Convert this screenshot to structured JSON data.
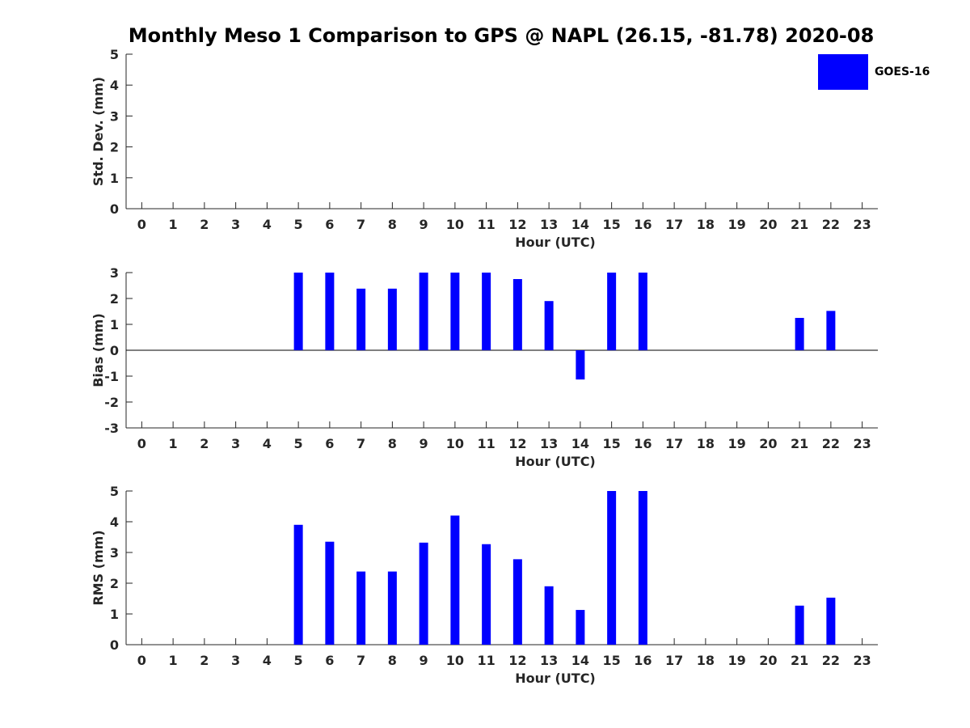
{
  "figure": {
    "title": "Monthly Meso 1 Comparison to GPS @ NAPL (26.15, -81.78) 2020-08",
    "legend": {
      "label": "GOES-16",
      "color": "#0000ff"
    }
  },
  "colors": {
    "bar": "#0000ff",
    "axis": "#262626"
  },
  "chart_data": [
    {
      "type": "bar",
      "name": "std",
      "categories": [
        "0",
        "1",
        "2",
        "3",
        "4",
        "5",
        "6",
        "7",
        "8",
        "9",
        "10",
        "11",
        "12",
        "13",
        "14",
        "15",
        "16",
        "17",
        "18",
        "19",
        "20",
        "21",
        "22",
        "23"
      ],
      "values": [
        null,
        null,
        null,
        null,
        null,
        null,
        null,
        null,
        null,
        null,
        null,
        null,
        null,
        null,
        null,
        null,
        null,
        null,
        null,
        null,
        null,
        null,
        null,
        null
      ],
      "series_name": "GOES-16",
      "xlabel": "Hour (UTC)",
      "ylabel": "Std. Dev. (mm)",
      "ylim": [
        0,
        5
      ],
      "yticks": [
        0,
        1,
        2,
        3,
        4,
        5
      ],
      "zero_line": false
    },
    {
      "type": "bar",
      "name": "bias",
      "categories": [
        "0",
        "1",
        "2",
        "3",
        "4",
        "5",
        "6",
        "7",
        "8",
        "9",
        "10",
        "11",
        "12",
        "13",
        "14",
        "15",
        "16",
        "17",
        "18",
        "19",
        "20",
        "21",
        "22",
        "23"
      ],
      "values": [
        null,
        null,
        null,
        null,
        null,
        3.0,
        3.0,
        2.38,
        2.38,
        3.0,
        3.0,
        3.0,
        2.75,
        1.9,
        -1.13,
        3.0,
        3.0,
        null,
        null,
        null,
        null,
        1.25,
        1.52,
        null
      ],
      "series_name": "GOES-16",
      "xlabel": "Hour (UTC)",
      "ylabel": "Bias (mm)",
      "ylim": [
        -3,
        3
      ],
      "yticks": [
        -3,
        -2,
        -1,
        0,
        1,
        2,
        3
      ],
      "zero_line": true
    },
    {
      "type": "bar",
      "name": "rms",
      "categories": [
        "0",
        "1",
        "2",
        "3",
        "4",
        "5",
        "6",
        "7",
        "8",
        "9",
        "10",
        "11",
        "12",
        "13",
        "14",
        "15",
        "16",
        "17",
        "18",
        "19",
        "20",
        "21",
        "22",
        "23"
      ],
      "values": [
        null,
        null,
        null,
        null,
        null,
        3.9,
        3.35,
        2.38,
        2.38,
        3.32,
        4.2,
        3.27,
        2.78,
        1.9,
        1.13,
        5.0,
        5.0,
        null,
        null,
        null,
        null,
        1.27,
        1.53,
        null
      ],
      "series_name": "GOES-16",
      "xlabel": "Hour (UTC)",
      "ylabel": "RMS (mm)",
      "ylim": [
        0,
        5
      ],
      "yticks": [
        0,
        1,
        2,
        3,
        4,
        5
      ],
      "zero_line": false
    }
  ]
}
